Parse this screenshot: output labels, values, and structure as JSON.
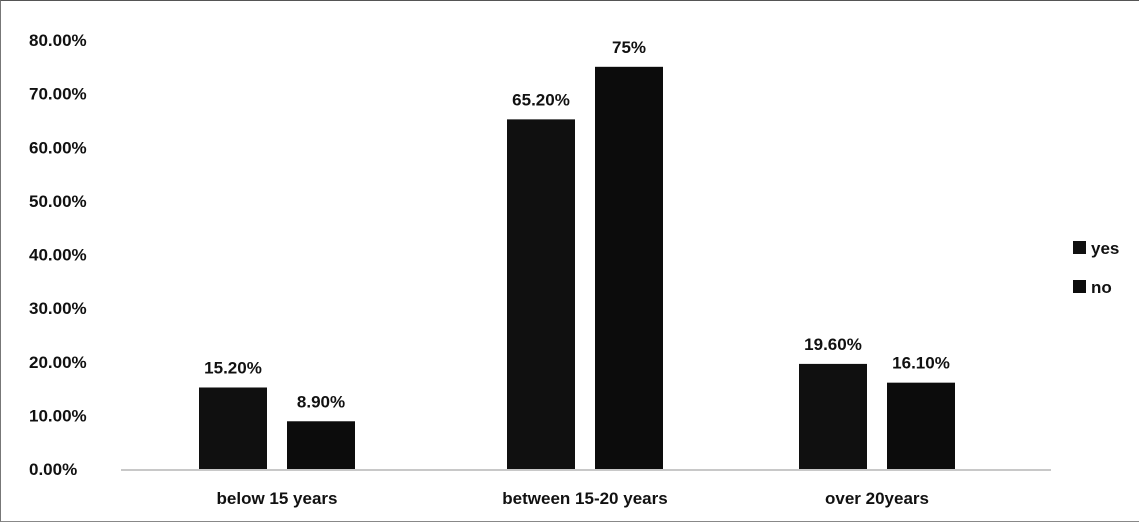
{
  "chart_data": {
    "type": "bar",
    "title": "",
    "xlabel": "",
    "ylabel": "",
    "categories": [
      "below 15 years",
      "between 15-20 years",
      "over 20years"
    ],
    "series": [
      {
        "name": "yes",
        "values": [
          15.2,
          65.2,
          19.6
        ],
        "labels": [
          "15.20%",
          "65.20%",
          "19.60%"
        ],
        "color": "#101010"
      },
      {
        "name": "no",
        "values": [
          8.9,
          75,
          16.1
        ],
        "labels": [
          "8.90%",
          "75%",
          "16.10%"
        ],
        "color": "#0c0c0c"
      }
    ],
    "ylim": [
      0,
      80
    ],
    "yticks": [
      0,
      10,
      20,
      30,
      40,
      50,
      60,
      70,
      80
    ],
    "ytick_labels": [
      "0.00%",
      "10.00%",
      "20.00%",
      "30.00%",
      "40.00%",
      "50.00%",
      "60.00%",
      "70.00%",
      "80.00%"
    ],
    "legend_position": "right",
    "grid": false
  }
}
